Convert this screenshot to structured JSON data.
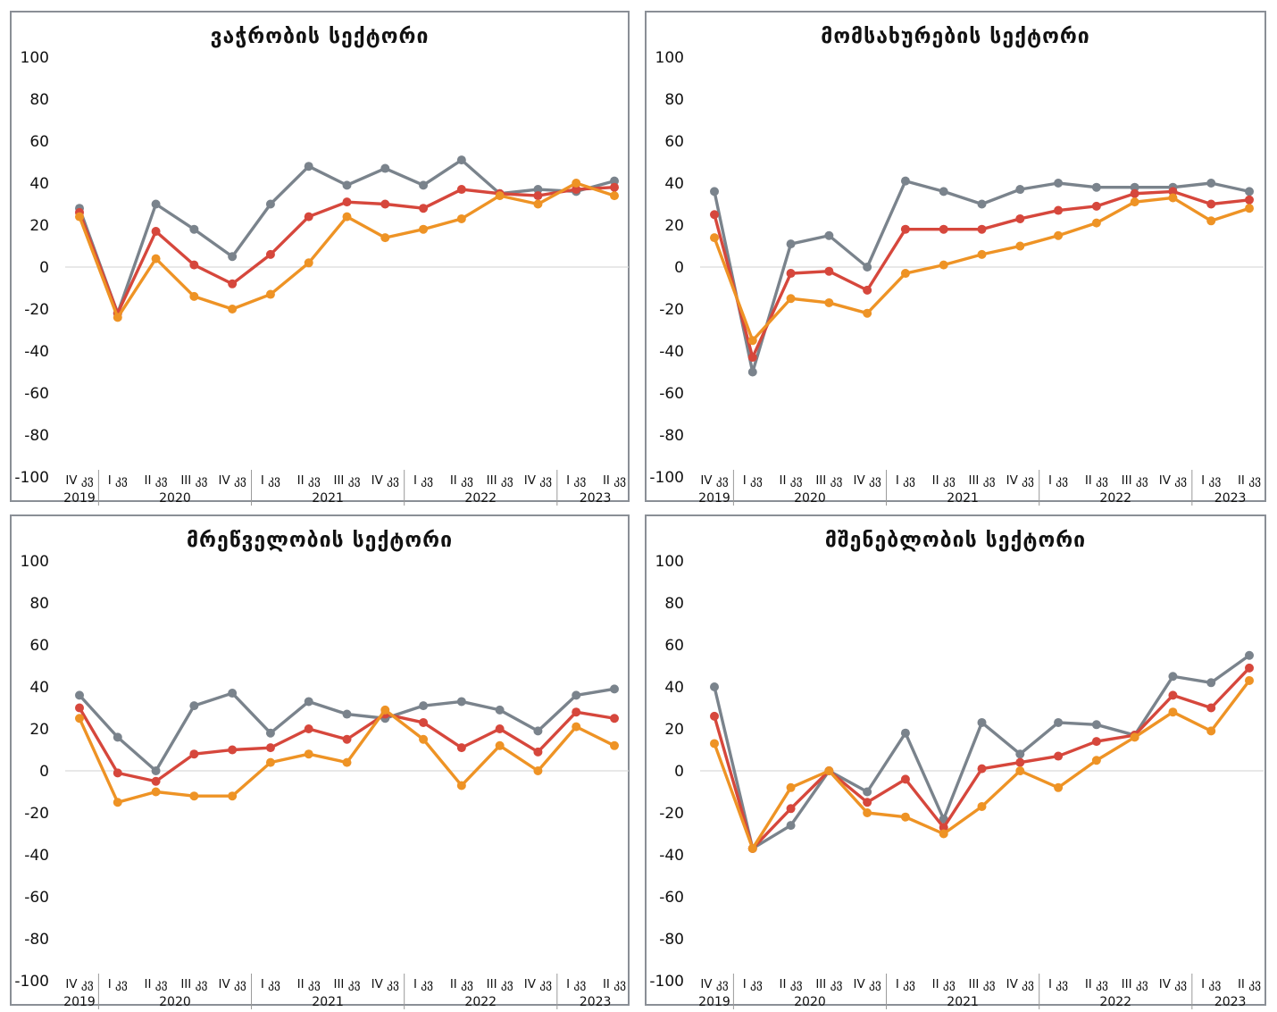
{
  "colors": {
    "series1": "#7a838c",
    "series2": "#d6473c",
    "series3": "#ee9325",
    "zero_line": "#d9d9d9"
  },
  "chart_data": [
    {
      "type": "line",
      "title": "ვაჭრობის სექტორი",
      "ylim": [
        -100,
        100
      ],
      "yticks": [
        "100",
        "80",
        "60",
        "40",
        "20",
        "0",
        "-20",
        "-40",
        "-60",
        "-80",
        "-100"
      ],
      "x": [
        "IV კვ",
        "I კვ",
        "II კვ",
        "III კვ",
        "IV კვ",
        "I კვ",
        "II კვ",
        "III კვ",
        "IV კვ",
        "I კვ",
        "II კვ",
        "III კვ",
        "IV კვ",
        "I კვ",
        "II კვ"
      ],
      "years": [
        {
          "label": "2019",
          "start": 0,
          "end": 0
        },
        {
          "label": "2020",
          "start": 1,
          "end": 4
        },
        {
          "label": "2021",
          "start": 5,
          "end": 8
        },
        {
          "label": "2022",
          "start": 9,
          "end": 12
        },
        {
          "label": "2023",
          "start": 13,
          "end": 14
        }
      ],
      "series": [
        {
          "values": [
            28,
            -22,
            30,
            18,
            5,
            30,
            48,
            39,
            47,
            39,
            51,
            35,
            37,
            36,
            41
          ]
        },
        {
          "values": [
            26,
            -22,
            17,
            1,
            -8,
            6,
            24,
            31,
            30,
            28,
            37,
            35,
            34,
            37,
            38
          ]
        },
        {
          "values": [
            24,
            -24,
            4,
            -14,
            -20,
            -13,
            2,
            24,
            14,
            18,
            23,
            34,
            30,
            40,
            34
          ]
        }
      ]
    },
    {
      "type": "line",
      "title": "მომსახურების სექტორი",
      "ylim": [
        -100,
        100
      ],
      "yticks": [
        "100",
        "80",
        "60",
        "40",
        "20",
        "0",
        "-20",
        "-40",
        "-60",
        "-80",
        "-100"
      ],
      "x": [
        "IV კვ",
        "I კვ",
        "II კვ",
        "III კვ",
        "IV კვ",
        "I კვ",
        "II კვ",
        "III კვ",
        "IV კვ",
        "I კვ",
        "II კვ",
        "III კვ",
        "IV კვ",
        "I კვ",
        "II კვ"
      ],
      "years": [
        {
          "label": "2019",
          "start": 0,
          "end": 0
        },
        {
          "label": "2020",
          "start": 1,
          "end": 4
        },
        {
          "label": "2021",
          "start": 5,
          "end": 8
        },
        {
          "label": "2022",
          "start": 9,
          "end": 12
        },
        {
          "label": "2023",
          "start": 13,
          "end": 14
        }
      ],
      "series": [
        {
          "values": [
            36,
            -50,
            11,
            15,
            0,
            41,
            36,
            30,
            37,
            40,
            38,
            38,
            38,
            40,
            36
          ]
        },
        {
          "values": [
            25,
            -43,
            -3,
            -2,
            -11,
            18,
            18,
            18,
            23,
            27,
            29,
            35,
            36,
            30,
            32
          ]
        },
        {
          "values": [
            14,
            -35,
            -15,
            -17,
            -22,
            -3,
            1,
            6,
            10,
            15,
            21,
            31,
            33,
            22,
            28
          ]
        }
      ]
    },
    {
      "type": "line",
      "title": "მრეწველობის სექტორი",
      "ylim": [
        -100,
        100
      ],
      "yticks": [
        "100",
        "80",
        "60",
        "40",
        "20",
        "0",
        "-20",
        "-40",
        "-60",
        "-80",
        "-100"
      ],
      "x": [
        "IV კვ",
        "I კვ",
        "II კვ",
        "III კვ",
        "IV კვ",
        "I კვ",
        "II კვ",
        "III კვ",
        "IV კვ",
        "I კვ",
        "II კვ",
        "III კვ",
        "IV კვ",
        "I კვ",
        "II კვ"
      ],
      "years": [
        {
          "label": "2019",
          "start": 0,
          "end": 0
        },
        {
          "label": "2020",
          "start": 1,
          "end": 4
        },
        {
          "label": "2021",
          "start": 5,
          "end": 8
        },
        {
          "label": "2022",
          "start": 9,
          "end": 12
        },
        {
          "label": "2023",
          "start": 13,
          "end": 14
        }
      ],
      "series": [
        {
          "values": [
            36,
            16,
            0,
            31,
            37,
            18,
            33,
            27,
            25,
            31,
            33,
            29,
            19,
            36,
            39
          ]
        },
        {
          "values": [
            30,
            -1,
            -5,
            8,
            10,
            11,
            20,
            15,
            27,
            23,
            11,
            20,
            9,
            28,
            25
          ]
        },
        {
          "values": [
            25,
            -15,
            -10,
            -12,
            -12,
            4,
            8,
            4,
            29,
            15,
            -7,
            12,
            0,
            21,
            12
          ]
        }
      ]
    },
    {
      "type": "line",
      "title": "მშენებლობის სექტორი",
      "ylim": [
        -100,
        100
      ],
      "yticks": [
        "100",
        "80",
        "60",
        "40",
        "20",
        "0",
        "-20",
        "-40",
        "-60",
        "-80",
        "-100"
      ],
      "x": [
        "IV კვ",
        "I კვ",
        "II კვ",
        "III კვ",
        "IV კვ",
        "I კვ",
        "II კვ",
        "III კვ",
        "IV კვ",
        "I კვ",
        "II კვ",
        "III კვ",
        "IV კვ",
        "I კვ",
        "II კვ"
      ],
      "years": [
        {
          "label": "2019",
          "start": 0,
          "end": 0
        },
        {
          "label": "2020",
          "start": 1,
          "end": 4
        },
        {
          "label": "2021",
          "start": 5,
          "end": 8
        },
        {
          "label": "2022",
          "start": 9,
          "end": 12
        },
        {
          "label": "2023",
          "start": 13,
          "end": 14
        }
      ],
      "series": [
        {
          "values": [
            40,
            -37,
            -26,
            0,
            -10,
            18,
            -23,
            23,
            8,
            23,
            22,
            17,
            45,
            42,
            55
          ]
        },
        {
          "values": [
            26,
            -37,
            -18,
            0,
            -15,
            -4,
            -27,
            1,
            4,
            7,
            14,
            17,
            36,
            30,
            49
          ]
        },
        {
          "values": [
            13,
            -37,
            -8,
            0,
            -20,
            -22,
            -30,
            -17,
            0,
            -8,
            5,
            16,
            28,
            19,
            43
          ]
        }
      ]
    }
  ]
}
